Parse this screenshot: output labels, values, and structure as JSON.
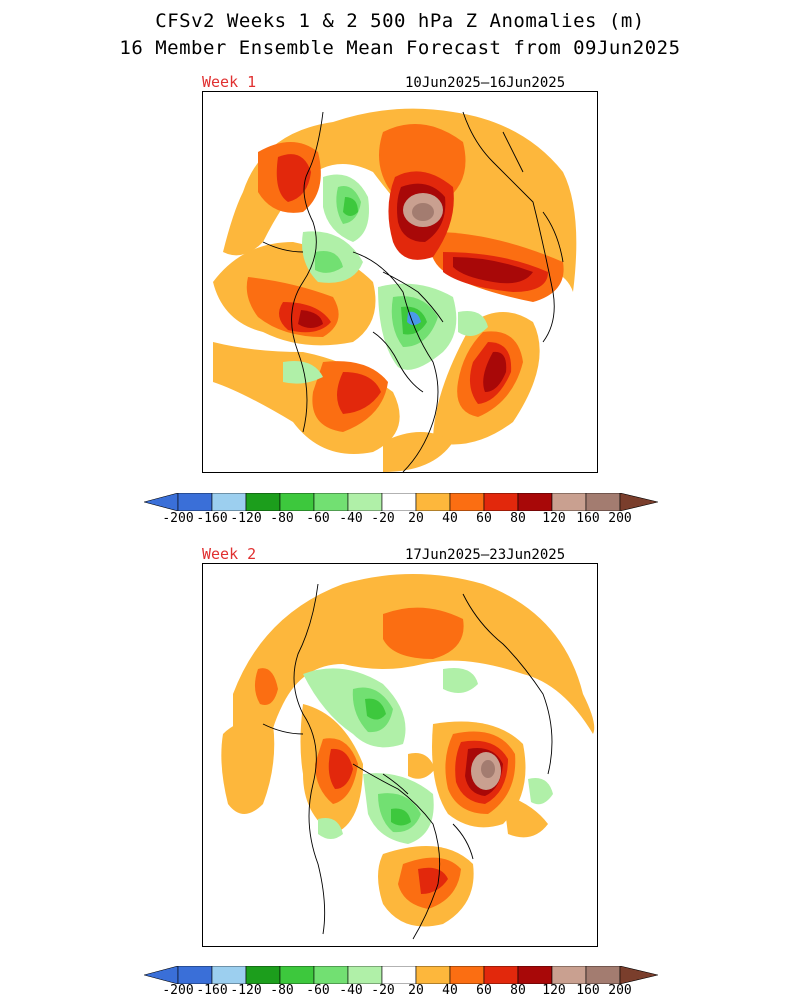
{
  "title_line1": "CFSv2 Weeks 1 & 2 500 hPa Z Anomalies (m)",
  "title_line2": "16 Member Ensemble Mean Forecast from 09Jun2025",
  "panels": [
    {
      "label": "Week 1",
      "dates": "10Jun2025–16Jun2025"
    },
    {
      "label": "Week 2",
      "dates": "17Jun2025–23Jun2025"
    }
  ],
  "colorbar": {
    "labels": [
      "-200",
      "-160",
      "-120",
      "-80",
      "-60",
      "-40",
      "-20",
      "20",
      "40",
      "60",
      "80",
      "120",
      "160",
      "200"
    ],
    "colors": [
      "#3a6fd8",
      "#4a9ae8",
      "#9ccfef",
      "#1c9e1c",
      "#3dc83d",
      "#72e072",
      "#b0f0a8",
      "#ffffff",
      "#fdb73c",
      "#fb6e12",
      "#e2280c",
      "#a80808",
      "#c9a090",
      "#a37c70",
      "#7a3e2c"
    ],
    "left_color": "#3a6fd8",
    "right_color": "#7a3e2c"
  },
  "legend_colors": {
    "p20": "#fdb73c",
    "p40": "#fb6e12",
    "p60": "#e2280c",
    "p80": "#a80808",
    "p120": "#c9a090",
    "p160": "#a37c70",
    "n20": "#b0f0a8",
    "n40": "#72e072",
    "n60": "#3dc83d",
    "n80": "#1c9e1c",
    "n120": "#9ccfef"
  }
}
